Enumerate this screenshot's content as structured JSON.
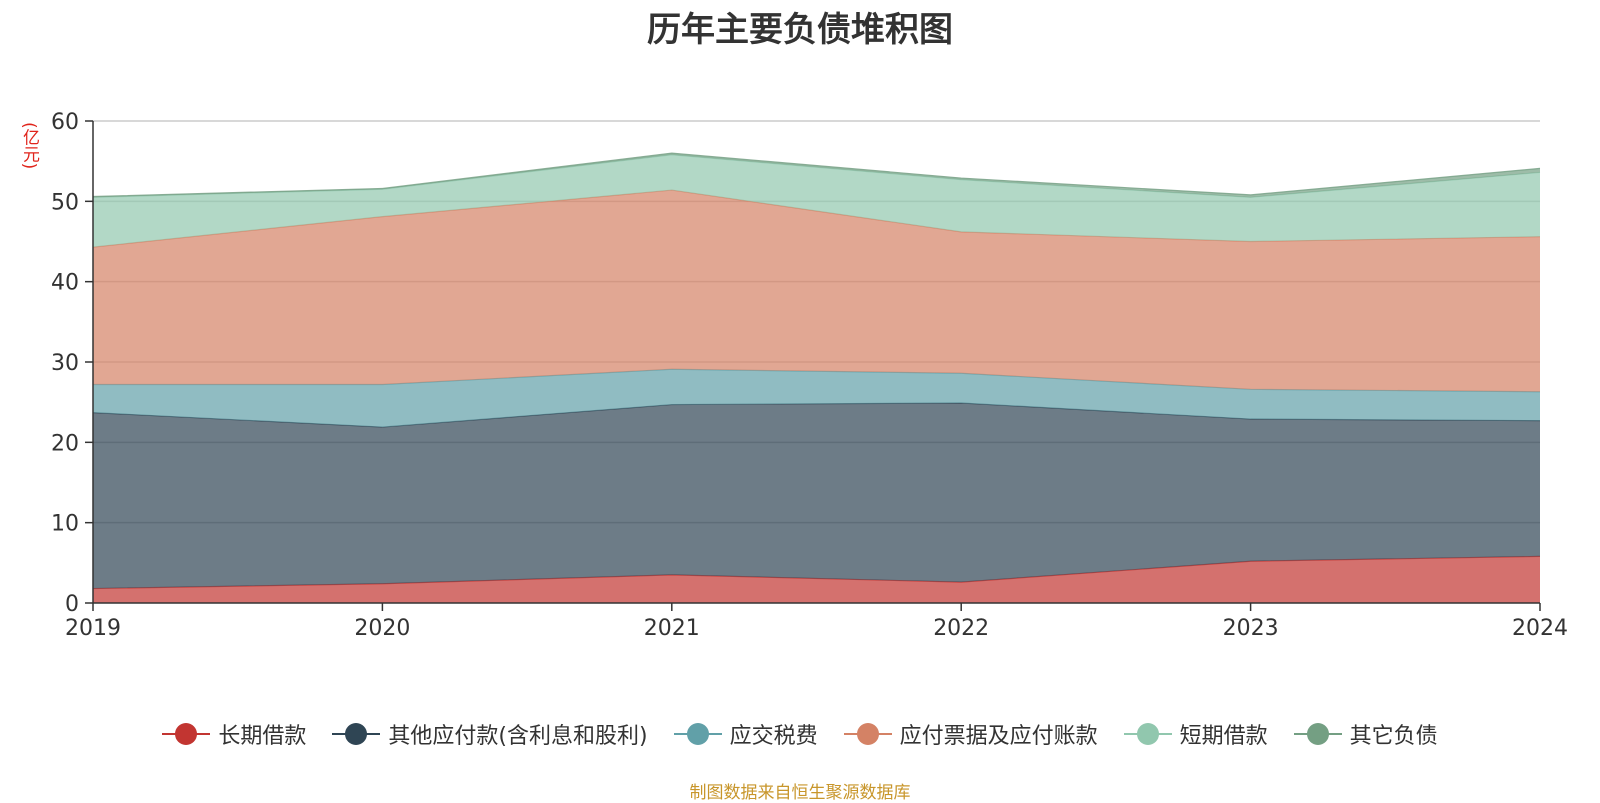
{
  "title": "历年主要负债堆积图",
  "unit": "(亿元)",
  "source": "制图数据来自恒生聚源数据库",
  "chart_data": {
    "type": "area",
    "stacked": true,
    "title": "历年主要负债堆积图",
    "ylabel": "(亿元)",
    "x": [
      "2019",
      "2020",
      "2021",
      "2022",
      "2023",
      "2024"
    ],
    "ylim": [
      0,
      60
    ],
    "yticks": [
      0,
      10,
      20,
      30,
      40,
      50,
      60
    ],
    "grid": true,
    "legend_position": "bottom",
    "series": [
      {
        "name": "长期借款",
        "color": "#c23531",
        "values": [
          1.8,
          2.4,
          3.5,
          2.6,
          5.2,
          5.8
        ]
      },
      {
        "name": "其他应付款(含利息和股利)",
        "color": "#2f4554",
        "values": [
          21.9,
          19.5,
          21.2,
          22.3,
          17.7,
          16.9
        ]
      },
      {
        "name": "应交税费",
        "color": "#61a0a8",
        "values": [
          3.5,
          5.3,
          4.4,
          3.7,
          3.7,
          3.6
        ]
      },
      {
        "name": "应付票据及应付账款",
        "color": "#d48265",
        "values": [
          17.1,
          20.9,
          22.3,
          17.6,
          18.4,
          19.3
        ]
      },
      {
        "name": "短期借款",
        "color": "#91c7ae",
        "values": [
          6.2,
          3.4,
          4.4,
          6.5,
          5.5,
          8.0
        ]
      },
      {
        "name": "其它负债",
        "color": "#749f83",
        "values": [
          0.1,
          0.1,
          0.2,
          0.2,
          0.3,
          0.5
        ]
      }
    ]
  }
}
